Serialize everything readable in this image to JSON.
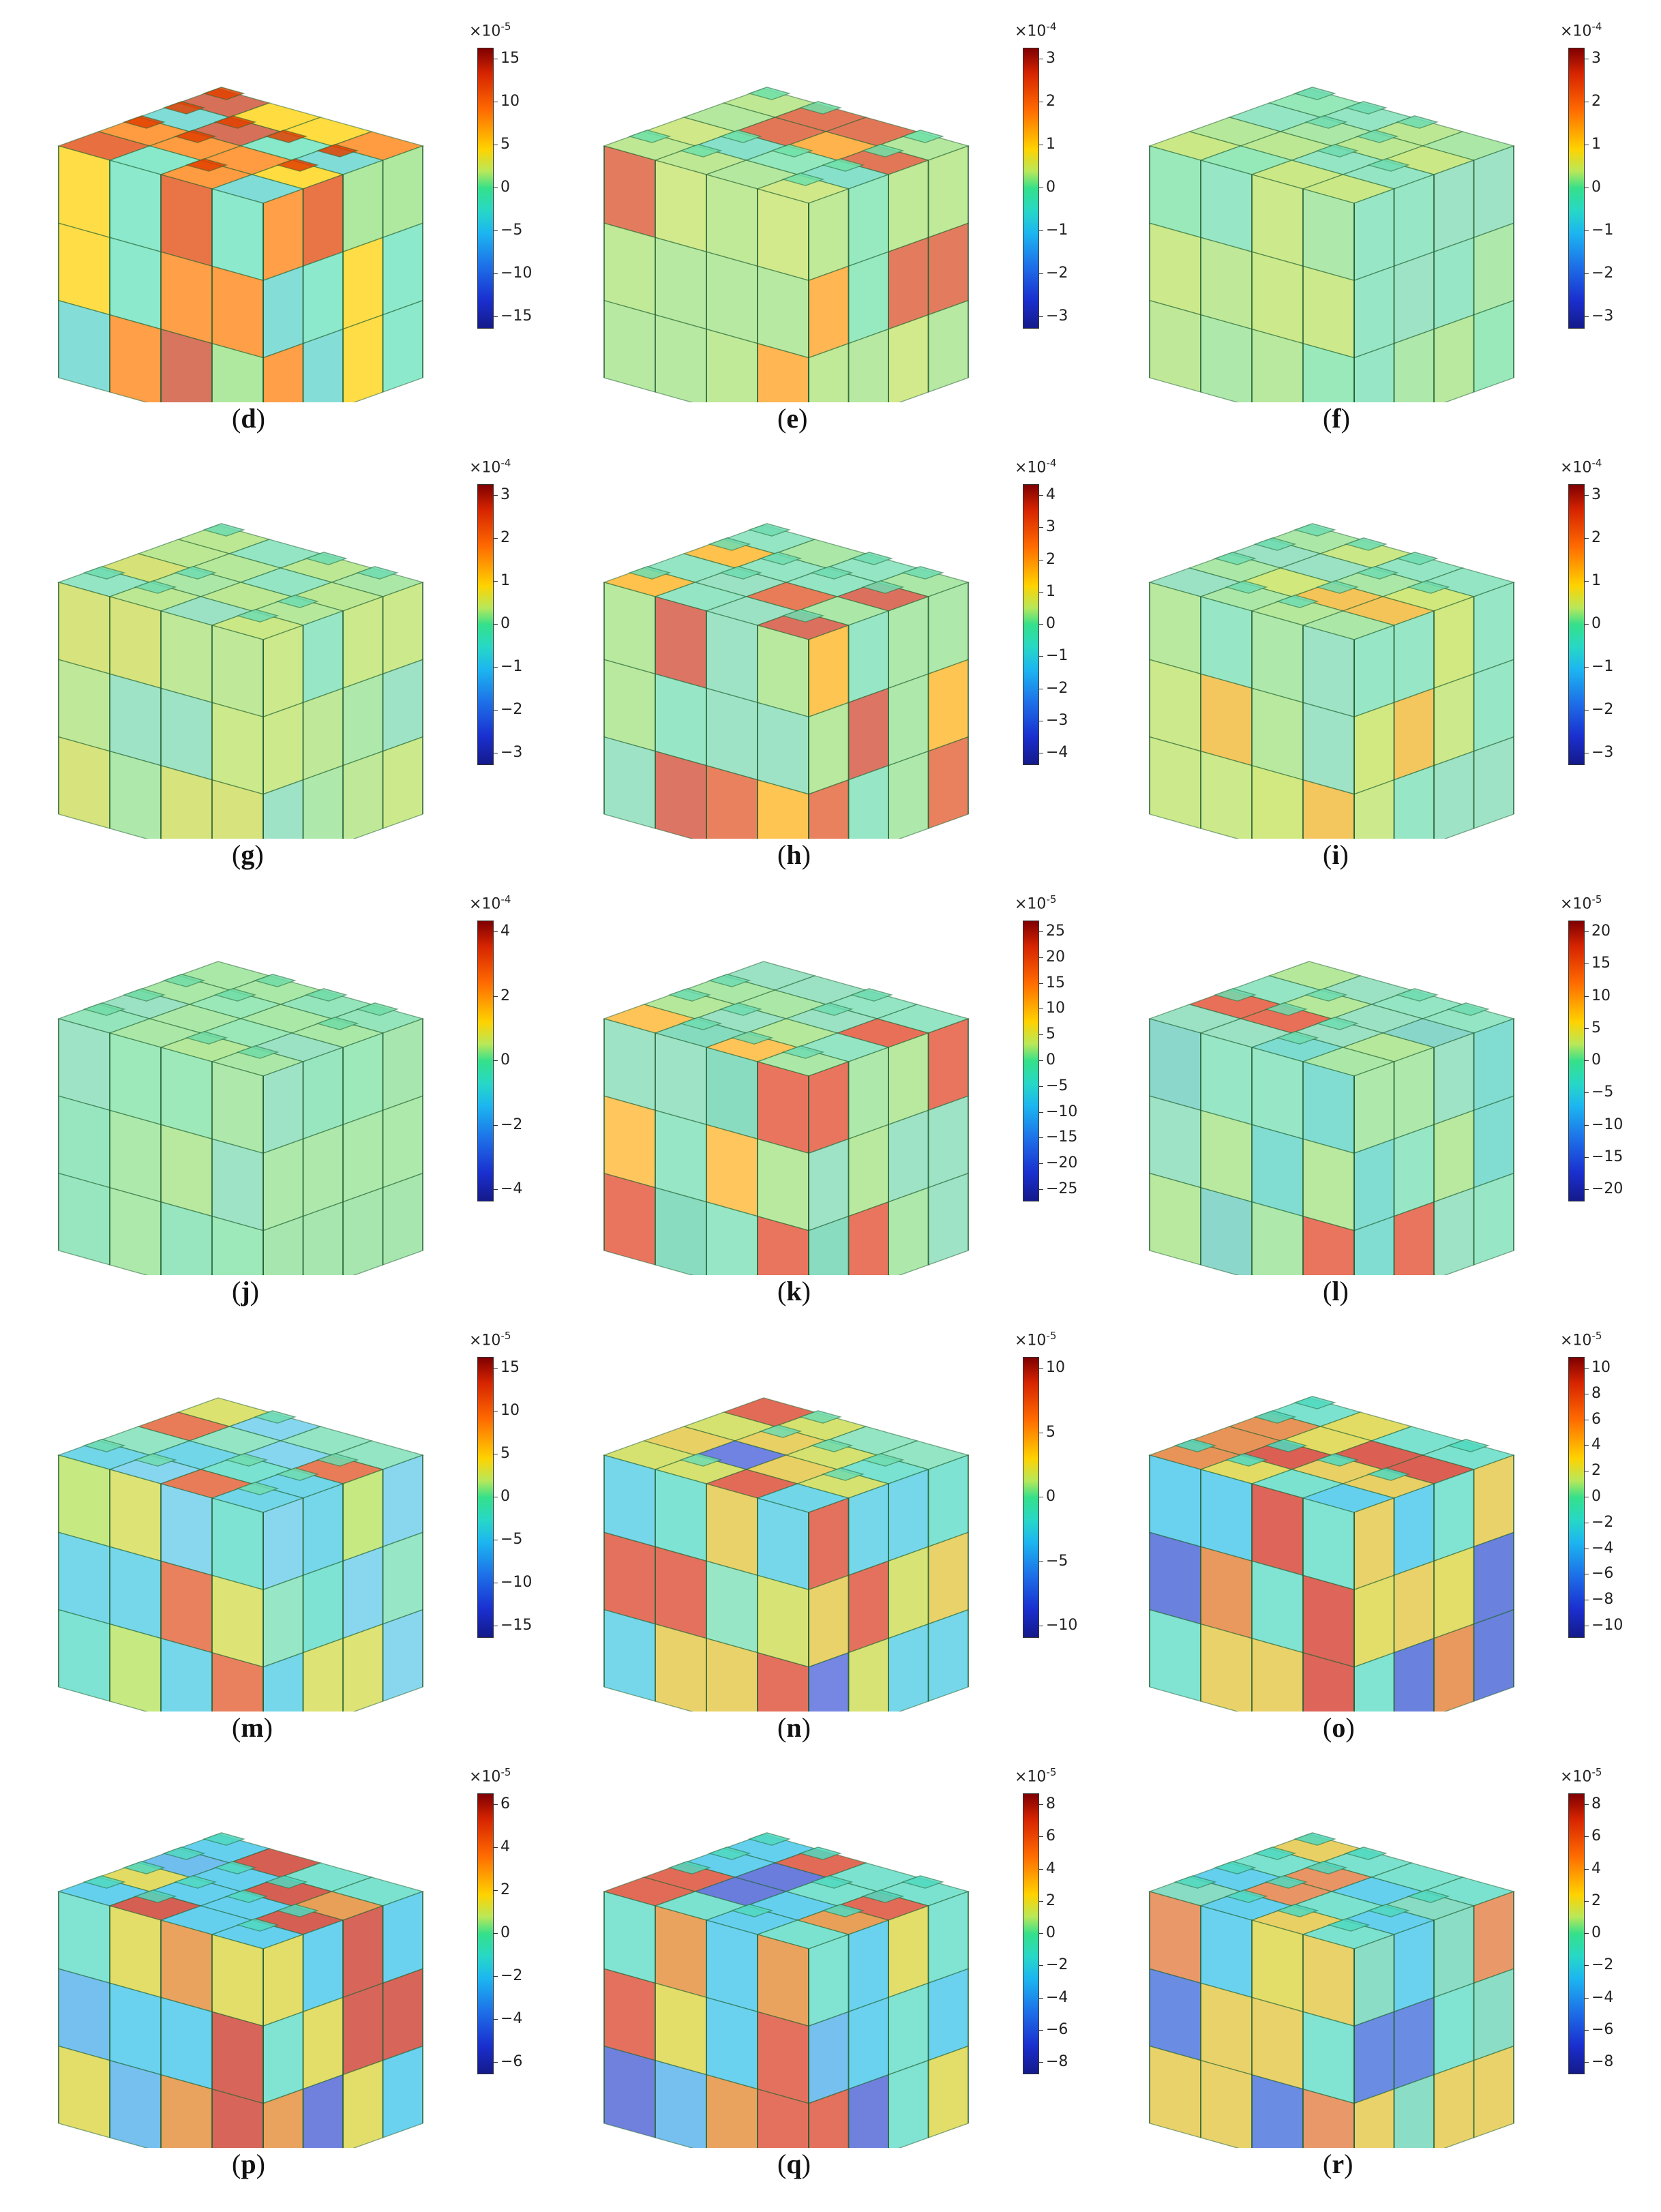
{
  "panels": [
    {
      "id": "d",
      "caption": "d",
      "exp": "-5",
      "ticks": [
        "15",
        "10",
        "5",
        "0",
        "-5",
        "-10",
        "-15"
      ],
      "palette": [
        "#ff7a00",
        "#e04000",
        "#ffd000",
        "#8fe07a",
        "#5fe0b8",
        "#c84020",
        "#56d0c8"
      ]
    },
    {
      "id": "e",
      "caption": "e",
      "exp": "-4",
      "ticks": [
        "3",
        "2",
        "1",
        "0",
        "-1",
        "-2",
        "-3"
      ],
      "palette": [
        "#9be07e",
        "#6fe0a8",
        "#d84a20",
        "#ff9a10",
        "#a8e070",
        "#5fd6b8",
        "#c0e060"
      ]
    },
    {
      "id": "f",
      "caption": "f",
      "exp": "-4",
      "ticks": [
        "3",
        "2",
        "1",
        "0",
        "-1",
        "-2",
        "-3"
      ],
      "palette": [
        "#8fe08a",
        "#6fdcb0",
        "#a6e070",
        "#72e0a0",
        "#9ee07a",
        "#7ad8b0",
        "#b8e05e"
      ]
    },
    {
      "id": "g",
      "caption": "g",
      "exp": "-4",
      "ticks": [
        "3",
        "2",
        "1",
        "0",
        "-1",
        "-2",
        "-3"
      ],
      "palette": [
        "#8fe08a",
        "#6fdcb0",
        "#a6e070",
        "#c8d84a",
        "#9ee07a",
        "#7ad8b0",
        "#b8e05e"
      ]
    },
    {
      "id": "h",
      "caption": "h",
      "exp": "-4",
      "ticks": [
        "4",
        "3",
        "2",
        "1",
        "0",
        "-1",
        "-2",
        "-3",
        "-4"
      ],
      "palette": [
        "#8fe08a",
        "#6fdcb0",
        "#e05020",
        "#ffae10",
        "#9ee07a",
        "#7ad8b0",
        "#d04028"
      ]
    },
    {
      "id": "i",
      "caption": "i",
      "exp": "-4",
      "ticks": [
        "3",
        "2",
        "1",
        "0",
        "-1",
        "-2",
        "-3"
      ],
      "palette": [
        "#8fe08a",
        "#6fdcb0",
        "#c0e050",
        "#f0b020",
        "#9ee07a",
        "#7ad8b0",
        "#b8e05e"
      ]
    },
    {
      "id": "j",
      "caption": "j",
      "exp": "-4",
      "ticks": [
        "4",
        "2",
        "0",
        "-2",
        "-4"
      ],
      "palette": [
        "#8fe08a",
        "#70dca6",
        "#86dc90",
        "#78e0a0",
        "#9ee07a",
        "#7ad8b0",
        "#8ee08a"
      ]
    },
    {
      "id": "k",
      "caption": "k",
      "exp": "-5",
      "ticks": [
        "25",
        "20",
        "15",
        "10",
        "5",
        "0",
        "-5",
        "-10",
        "-15",
        "-20",
        "-25"
      ],
      "palette": [
        "#8fe08a",
        "#6fdcb0",
        "#e04020",
        "#ffb020",
        "#9ee07a",
        "#7ad8b0",
        "#5ccfa8"
      ]
    },
    {
      "id": "l",
      "caption": "l",
      "exp": "-5",
      "ticks": [
        "20",
        "15",
        "10",
        "5",
        "0",
        "-5",
        "-10",
        "-15",
        "-20"
      ],
      "palette": [
        "#8fe08a",
        "#6fdcb0",
        "#e04020",
        "#50d0c0",
        "#9ee07a",
        "#7ad8b0",
        "#60c8b8"
      ]
    },
    {
      "id": "m",
      "caption": "m",
      "exp": "-5",
      "ticks": [
        "15",
        "10",
        "5",
        "0",
        "-5",
        "-10",
        "-15"
      ],
      "palette": [
        "#40c8e0",
        "#6fdcb0",
        "#e05020",
        "#d0d840",
        "#5cc8e8",
        "#4cd8c0",
        "#b0e050"
      ]
    },
    {
      "id": "n",
      "caption": "n",
      "exp": "-5",
      "ticks": [
        "10",
        "5",
        "0",
        "-5",
        "-10"
      ],
      "palette": [
        "#40c8e0",
        "#6fdcb0",
        "#d83a20",
        "#c8d840",
        "#4058d8",
        "#4cd8c0",
        "#e0c030"
      ]
    },
    {
      "id": "o",
      "caption": "o",
      "exp": "-5",
      "ticks": [
        "10",
        "8",
        "6",
        "4",
        "2",
        "0",
        "-2",
        "-4",
        "-6",
        "-8",
        "-10"
      ],
      "palette": [
        "#30c0e8",
        "#50d8c0",
        "#d02a1a",
        "#d8d030",
        "#3050d0",
        "#e07020",
        "#e0c030"
      ]
    },
    {
      "id": "p",
      "caption": "p",
      "exp": "-5",
      "ticks": [
        "6",
        "4",
        "2",
        "0",
        "-2",
        "-4",
        "-6"
      ],
      "palette": [
        "#30c0e8",
        "#50d8c0",
        "#c82a1a",
        "#d8d030",
        "#3850d0",
        "#e08020",
        "#40a8e8"
      ]
    },
    {
      "id": "q",
      "caption": "q",
      "exp": "-5",
      "ticks": [
        "8",
        "6",
        "4",
        "2",
        "0",
        "-2",
        "-4",
        "-6",
        "-8"
      ],
      "palette": [
        "#30c0e8",
        "#50d8c0",
        "#d83a20",
        "#d8d030",
        "#3850d0",
        "#e08020",
        "#40a8e8"
      ]
    },
    {
      "id": "r",
      "caption": "r",
      "exp": "-5",
      "ticks": [
        "8",
        "6",
        "4",
        "2",
        "0",
        "-2",
        "-4",
        "-6",
        "-8"
      ],
      "palette": [
        "#30c0e8",
        "#50d8c0",
        "#e07030",
        "#d8d030",
        "#3060d8",
        "#60d0b0",
        "#e0c030"
      ]
    }
  ],
  "colorbar_prefix": "×10"
}
